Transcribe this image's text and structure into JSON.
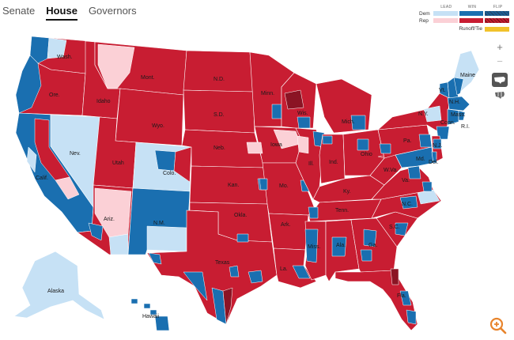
{
  "tabs": [
    {
      "label": "Senate"
    },
    {
      "label": "House"
    },
    {
      "label": "Governors"
    }
  ],
  "active_tab": "House",
  "legend": {
    "headers": [
      "LEAD",
      "WIN",
      "FLIP"
    ],
    "rows": [
      {
        "label": "Dem",
        "colors": [
          "#c6e1f5",
          "#1a6fb0",
          "#1a5f95"
        ]
      },
      {
        "label": "Rep",
        "colors": [
          "#fbd0d6",
          "#c81d32",
          "#c31d2e"
        ]
      }
    ],
    "runoff_label": "Runoff/Tie",
    "runoff_color": "#f1c22b"
  },
  "controls": {
    "zoom_in": "+",
    "zoom_out": "−",
    "view_us_icon": "us-map-icon",
    "view_district_icon": "district-map-icon",
    "magnify_icon": "zoom-magnifier-icon"
  },
  "colors": {
    "rep_win": "#c81d32",
    "rep_lead": "#fbd0d6",
    "dem_win": "#1a6fb0",
    "dem_lead": "#c6e1f5",
    "border": "#ffffff"
  },
  "state_labels": [
    "Wash.",
    "Ore.",
    "Idaho",
    "Mont.",
    "N.D.",
    "Minn.",
    "Wis.",
    "Mich.",
    "Maine",
    "Vt.",
    "N.H.",
    "N.Y.",
    "Mass.",
    "Conn.",
    "R.I.",
    "Wyo.",
    "S.D.",
    "Iowa",
    "Nev.",
    "Neb.",
    "Utah",
    "Colo.",
    "Calif.",
    "Ill.",
    "Ind.",
    "Ohio",
    "Pa.",
    "N.J.",
    "Md.",
    "Del.",
    "W.Va.",
    "Va.",
    "Kan.",
    "Mo.",
    "Ky.",
    "Ariz.",
    "Okla.",
    "N.M.",
    "Tenn.",
    "N.C.",
    "Ark.",
    "S.C.",
    "Miss.",
    "Ala.",
    "Ga.",
    "Texas",
    "La.",
    "Fla.",
    "Alaska",
    "Hawaii"
  ]
}
